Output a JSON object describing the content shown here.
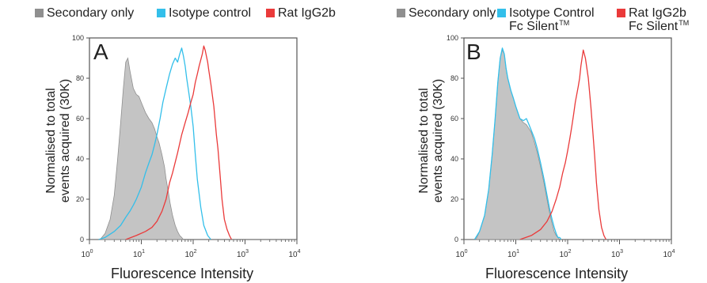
{
  "chart_data": [
    {
      "type": "area",
      "panel_label": "A",
      "xlabel": "Fluorescence Intensity",
      "ylabel_line1": "Normalised to total",
      "ylabel_line2": "events acquired (30K)",
      "xscale": "log",
      "xlim": [
        1,
        10000
      ],
      "ylim": [
        0,
        100
      ],
      "yticks": [
        "0",
        "20",
        "40",
        "60",
        "80",
        "100"
      ],
      "xtick_bases": [
        "10",
        "10",
        "10",
        "10",
        "10"
      ],
      "xtick_exps": [
        "0",
        "1",
        "2",
        "3",
        "4"
      ],
      "legend": [
        {
          "name": "Secondary only",
          "name_sub": "",
          "color": "#8f8f8f",
          "fill": "#c4c4c4"
        },
        {
          "name": "Isotype control",
          "name_sub": "",
          "color": "#33bfea",
          "fill": "none"
        },
        {
          "name": "Rat IgG2b",
          "name_sub": "",
          "color": "#ea3a3a",
          "fill": "none"
        }
      ],
      "series": [
        {
          "x": [
            1.6,
            2,
            2.5,
            3,
            3.5,
            4,
            4.5,
            5,
            5.5,
            6,
            7,
            8,
            9,
            10,
            12,
            14,
            16,
            18,
            20,
            22,
            25,
            28,
            30,
            33,
            36,
            40,
            45,
            50,
            55,
            60,
            65
          ],
          "y": [
            0,
            3,
            10,
            22,
            40,
            58,
            75,
            88,
            90,
            84,
            75,
            72,
            71,
            68,
            63,
            60,
            58,
            55,
            51,
            48,
            42,
            36,
            30,
            24,
            18,
            12,
            7,
            4,
            2,
            1,
            0
          ]
        },
        {
          "x": [
            1.5,
            2,
            3,
            4,
            5,
            6,
            7,
            8,
            10,
            12,
            14,
            16,
            18,
            20,
            23,
            26,
            30,
            35,
            40,
            45,
            50,
            55,
            60,
            65,
            70,
            75,
            80,
            90,
            100,
            110,
            120,
            140,
            160,
            190,
            220
          ],
          "y": [
            0,
            1,
            4,
            7,
            11,
            14,
            17,
            20,
            26,
            33,
            38,
            42,
            47,
            52,
            60,
            68,
            75,
            82,
            87,
            90,
            88,
            92,
            95,
            91,
            86,
            80,
            75,
            66,
            56,
            42,
            30,
            16,
            7,
            2,
            0
          ]
        },
        {
          "x": [
            5,
            8,
            12,
            16,
            20,
            25,
            30,
            35,
            40,
            50,
            60,
            70,
            80,
            90,
            100,
            110,
            120,
            130,
            150,
            160,
            170,
            190,
            200,
            220,
            250,
            280,
            300,
            330,
            360,
            400,
            450,
            500,
            550
          ],
          "y": [
            0,
            2,
            4,
            6,
            9,
            14,
            20,
            28,
            33,
            43,
            52,
            58,
            63,
            68,
            72,
            78,
            82,
            86,
            92,
            96,
            94,
            88,
            84,
            77,
            66,
            52,
            45,
            32,
            20,
            10,
            5,
            2,
            0
          ]
        }
      ]
    },
    {
      "type": "area",
      "panel_label": "B",
      "xlabel": "Fluorescence Intensity",
      "ylabel_line1": "Normalised to total",
      "ylabel_line2": "events acquired (30K)",
      "xscale": "log",
      "xlim": [
        1,
        10000
      ],
      "ylim": [
        0,
        100
      ],
      "yticks": [
        "0",
        "20",
        "40",
        "60",
        "80",
        "100"
      ],
      "xtick_bases": [
        "10",
        "10",
        "10",
        "10",
        "10"
      ],
      "xtick_exps": [
        "0",
        "1",
        "2",
        "3",
        "4"
      ],
      "legend": [
        {
          "name": "Secondary only",
          "name_sub": "",
          "color": "#8f8f8f",
          "fill": "#c4c4c4"
        },
        {
          "name": "Isotype Control",
          "name_sub": "Fc Silent",
          "color": "#33bfea",
          "fill": "none"
        },
        {
          "name": "Rat IgG2b",
          "name_sub": "Fc Silent",
          "color": "#ea3a3a",
          "fill": "none"
        }
      ],
      "superscript": "TM",
      "series": [
        {
          "x": [
            1.7,
            2,
            2.5,
            3,
            3.5,
            4,
            4.5,
            5,
            5.5,
            6,
            6.5,
            7,
            8,
            9,
            10,
            12,
            14,
            16,
            18,
            20,
            23,
            26,
            30,
            35,
            40,
            45,
            50,
            55,
            60,
            65,
            70
          ],
          "y": [
            0,
            4,
            12,
            25,
            42,
            60,
            78,
            90,
            94,
            92,
            85,
            80,
            74,
            70,
            66,
            60,
            58,
            57,
            55,
            53,
            48,
            43,
            36,
            28,
            20,
            13,
            8,
            4,
            2,
            1,
            0
          ]
        },
        {
          "x": [
            1.6,
            2,
            2.5,
            3,
            3.5,
            4,
            4.5,
            5,
            5.5,
            6,
            6.5,
            7,
            8,
            9,
            10,
            12,
            14,
            16,
            18,
            20,
            23,
            26,
            30,
            35,
            40,
            45,
            50,
            55,
            60,
            65,
            70,
            75
          ],
          "y": [
            0,
            4,
            12,
            25,
            42,
            60,
            78,
            90,
            95,
            92,
            85,
            80,
            74,
            70,
            66,
            60,
            59,
            60,
            57,
            54,
            50,
            45,
            38,
            30,
            22,
            15,
            10,
            6,
            3,
            1,
            1,
            0
          ]
        },
        {
          "x": [
            12,
            20,
            30,
            40,
            50,
            60,
            70,
            80,
            90,
            100,
            110,
            120,
            130,
            140,
            160,
            170,
            180,
            200,
            220,
            250,
            280,
            300,
            330,
            360,
            400,
            450,
            500,
            550
          ],
          "y": [
            0,
            2,
            5,
            9,
            14,
            20,
            26,
            33,
            38,
            44,
            50,
            56,
            62,
            68,
            76,
            80,
            86,
            94,
            90,
            80,
            66,
            56,
            42,
            28,
            15,
            6,
            2,
            0
          ]
        }
      ]
    }
  ]
}
